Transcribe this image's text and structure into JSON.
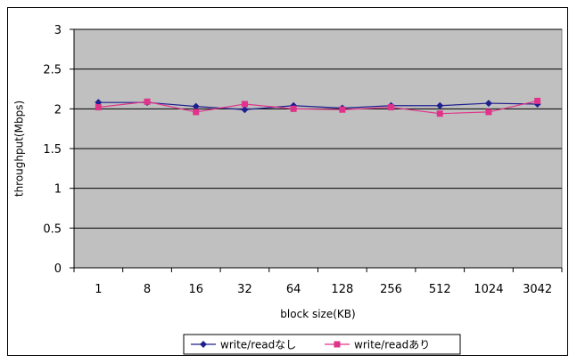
{
  "chart_data": {
    "type": "line",
    "xlabel": "block size(KB)",
    "ylabel": "throughput(Mbps)",
    "ylim": [
      0,
      3
    ],
    "yticks": [
      "0",
      "0.5",
      "1",
      "1.5",
      "2",
      "2.5",
      "3"
    ],
    "categories": [
      "1",
      "8",
      "16",
      "32",
      "64",
      "128",
      "256",
      "512",
      "1024",
      "3042"
    ],
    "grid": true,
    "legend_position": "bottom",
    "plot_background": "#c0c0c0",
    "series": [
      {
        "name": "write/readなし",
        "color": "#1f1f8f",
        "marker": "diamond",
        "values": [
          2.08,
          2.08,
          2.03,
          1.99,
          2.04,
          2.01,
          2.04,
          2.04,
          2.07,
          2.06
        ]
      },
      {
        "name": "write/readあり",
        "color": "#e0338a",
        "marker": "square",
        "values": [
          2.02,
          2.09,
          1.96,
          2.06,
          2.0,
          1.99,
          2.02,
          1.94,
          1.96,
          2.1
        ]
      }
    ]
  }
}
